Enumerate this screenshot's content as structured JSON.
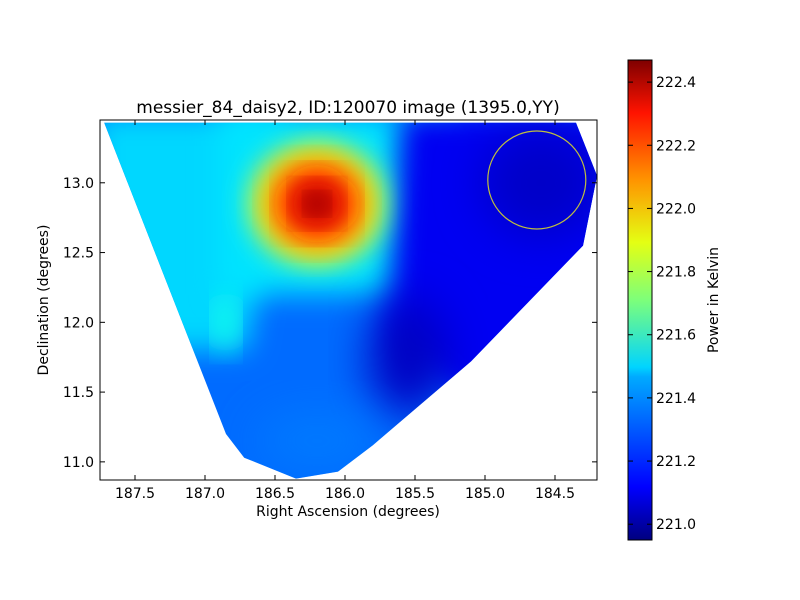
{
  "chart_data": {
    "type": "heatmap",
    "title": "messier_84_daisy2, ID:120070 image (1395.0,YY)",
    "xlabel": "Right Ascension (degrees)",
    "ylabel": "Declination (degrees)",
    "colorbar_label": "Power in Kelvin",
    "colormap": "jet",
    "xlim": [
      187.75,
      184.2
    ],
    "ylim": [
      10.87,
      13.45
    ],
    "clim": [
      220.95,
      222.47
    ],
    "x_axis_inverted": true,
    "x_ticks": [
      187.5,
      187.0,
      186.5,
      186.0,
      185.5,
      185.0,
      184.5
    ],
    "x_tick_labels": [
      "187.5",
      "187.0",
      "186.5",
      "186.0",
      "185.5",
      "185.0",
      "184.5"
    ],
    "y_ticks": [
      11.0,
      11.5,
      12.0,
      12.5,
      13.0
    ],
    "y_tick_labels": [
      "11.0",
      "11.5",
      "12.0",
      "12.5",
      "13.0"
    ],
    "colorbar_ticks": [
      221.0,
      221.2,
      221.4,
      221.6,
      221.8,
      222.0,
      222.2,
      222.4
    ],
    "colorbar_tick_labels": [
      "221.0",
      "221.2",
      "221.4",
      "221.6",
      "221.8",
      "222.0",
      "222.2",
      "222.4"
    ],
    "coverage_polygon": [
      [
        187.72,
        13.43
      ],
      [
        184.35,
        13.43
      ],
      [
        184.2,
        13.05
      ],
      [
        184.3,
        12.55
      ],
      [
        185.1,
        11.72
      ],
      [
        185.8,
        11.12
      ],
      [
        186.05,
        10.93
      ],
      [
        186.35,
        10.88
      ],
      [
        186.72,
        11.03
      ],
      [
        186.85,
        11.2
      ],
      [
        187.72,
        13.43
      ]
    ],
    "hot_spot": {
      "ra": 186.2,
      "dec": 12.85,
      "peak_kelvin": 222.45
    },
    "circle_marker": {
      "ra": 184.63,
      "dec": 13.02,
      "radius_deg": 0.35,
      "color": "#bfbf3f"
    },
    "sample_values": [
      {
        "ra": 186.2,
        "dec": 12.85,
        "value": 222.45
      },
      {
        "ra": 185.0,
        "dec": 13.1,
        "value": 221.1
      },
      {
        "ra": 185.3,
        "dec": 11.8,
        "value": 221.15
      },
      {
        "ra": 186.5,
        "dec": 11.5,
        "value": 221.3
      },
      {
        "ra": 187.2,
        "dec": 12.8,
        "value": 221.45
      },
      {
        "ra": 186.3,
        "dec": 11.05,
        "value": 221.3
      }
    ]
  }
}
